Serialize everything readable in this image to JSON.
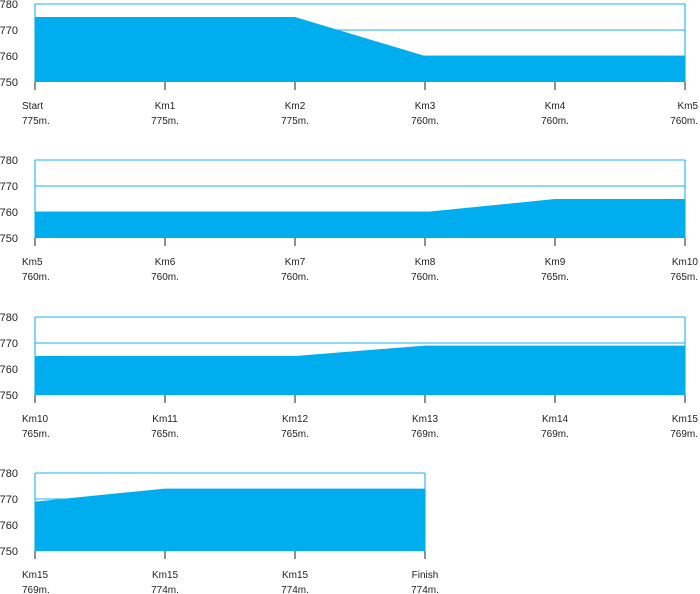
{
  "chart_data": [
    {
      "type": "area",
      "ylim": [
        750,
        780
      ],
      "yticks": [
        "780",
        "770",
        "760",
        "750"
      ],
      "categories": [
        "Start",
        "Km1",
        "Km2",
        "Km3",
        "Km4",
        "Km5"
      ],
      "values": [
        775,
        775,
        775,
        760,
        760,
        760
      ],
      "value_labels": [
        "775m.",
        "775m.",
        "775m.",
        "760m.",
        "760m.",
        "760m."
      ],
      "grid": true,
      "color": "#00aeef"
    },
    {
      "type": "area",
      "ylim": [
        750,
        780
      ],
      "yticks": [
        "780",
        "770",
        "760",
        "750"
      ],
      "categories": [
        "Km5",
        "Km6",
        "Km7",
        "Km8",
        "Km9",
        "Km10"
      ],
      "values": [
        760,
        760,
        760,
        760,
        765,
        765
      ],
      "value_labels": [
        "760m.",
        "760m.",
        "760m.",
        "760m.",
        "765m.",
        "765m."
      ],
      "grid": true,
      "color": "#00aeef"
    },
    {
      "type": "area",
      "ylim": [
        750,
        780
      ],
      "yticks": [
        "780",
        "770",
        "760",
        "750"
      ],
      "categories": [
        "Km10",
        "Km11",
        "Km12",
        "Km13",
        "Km14",
        "Km15"
      ],
      "values": [
        765,
        765,
        765,
        769,
        769,
        769
      ],
      "value_labels": [
        "765m.",
        "765m.",
        "765m.",
        "769m.",
        "769m.",
        "769m."
      ],
      "grid": true,
      "color": "#00aeef"
    },
    {
      "type": "area",
      "ylim": [
        750,
        780
      ],
      "yticks": [
        "780",
        "770",
        "760",
        "750"
      ],
      "categories": [
        "Km15",
        "Km15",
        "Km15",
        "Finish"
      ],
      "values": [
        769,
        774,
        774,
        774
      ],
      "value_labels": [
        "769m.",
        "774m.",
        "774m.",
        "774m."
      ],
      "grid": true,
      "color": "#00aeef"
    }
  ]
}
